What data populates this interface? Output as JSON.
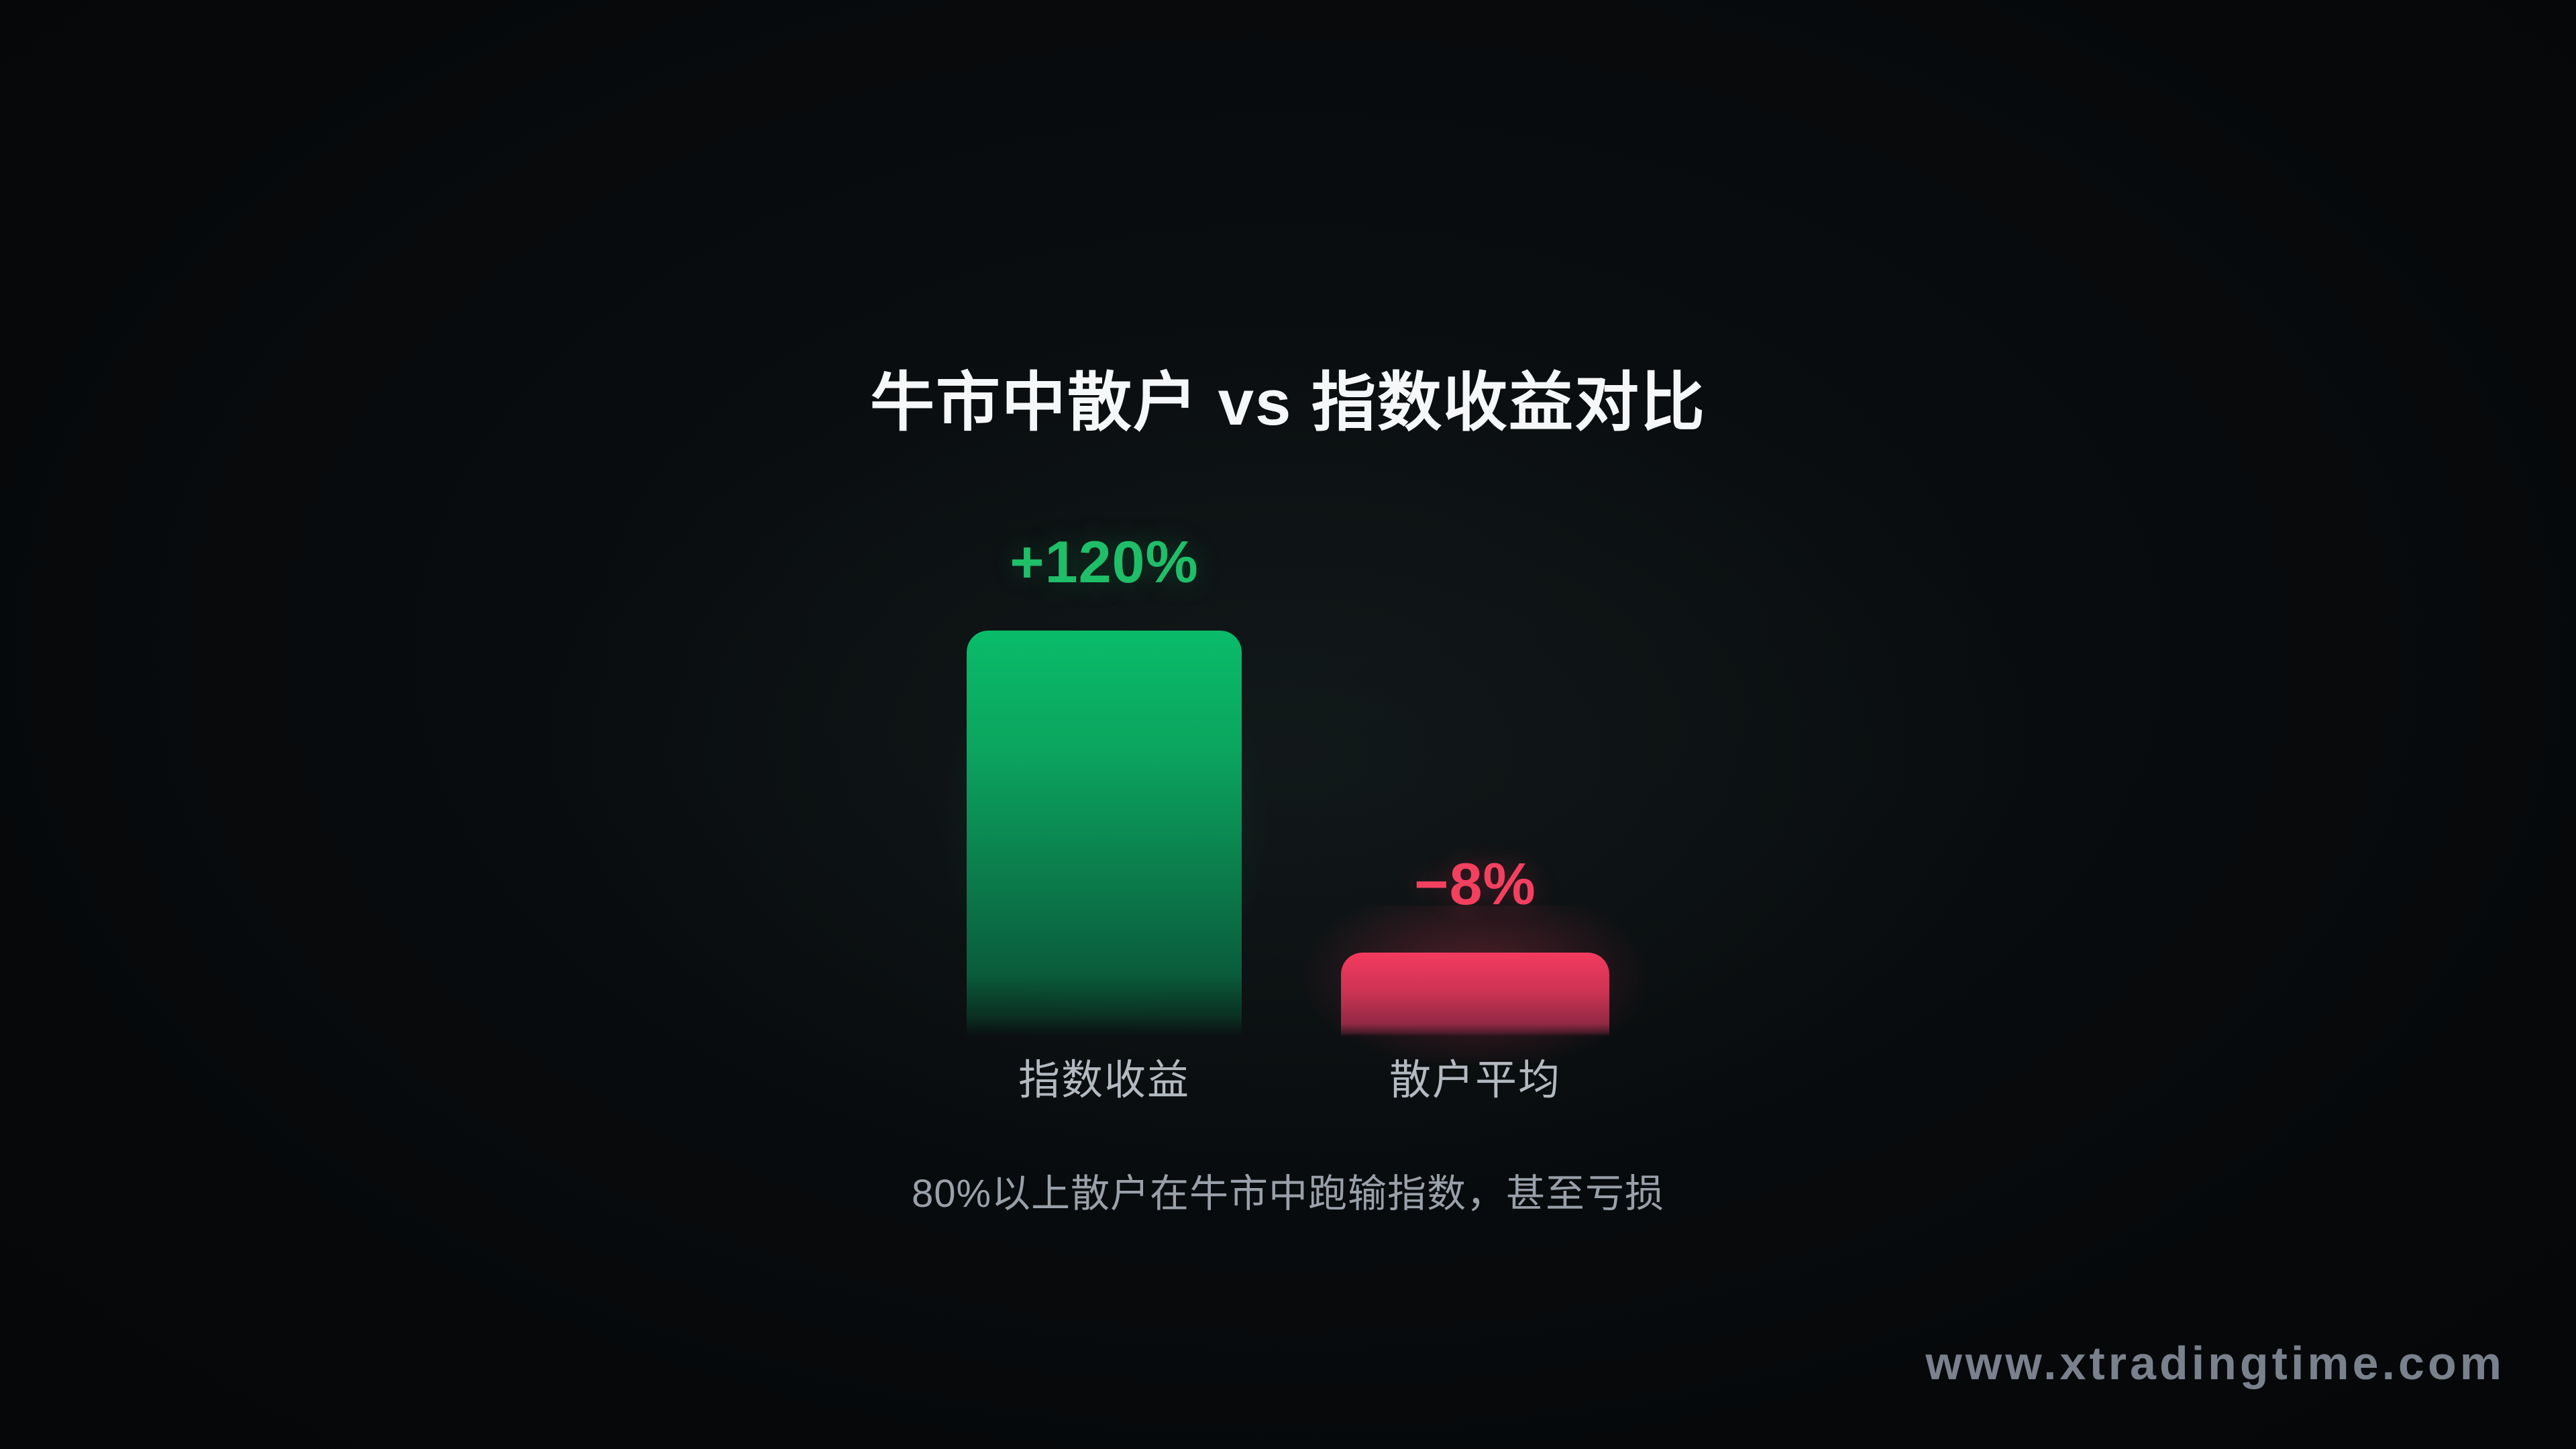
{
  "page": {
    "title": "牛市中散户 vs 指数收益对比",
    "caption": "80%以上散户在牛市中跑输指数，甚至亏损",
    "watermark": "www.xtradingtime.com"
  },
  "chart_data": {
    "type": "bar",
    "title": "牛市中散户 vs 指数收益对比",
    "categories": [
      "指数收益",
      "散户平均"
    ],
    "values": [
      120,
      -8
    ],
    "value_labels": [
      "+120%",
      "−8%"
    ],
    "unit": "%",
    "annotation": "80%以上散户在牛市中跑输指数，甚至亏损",
    "legend_position": "none",
    "grid": false,
    "axes_visible": false,
    "bar_colors": [
      "#09bc69",
      "#f43b5e"
    ],
    "value_label_colors": [
      "#1fbe68",
      "#f4405f"
    ]
  },
  "colors": {
    "background": "#07090b",
    "title_text": "#f5f7f8",
    "positive_green": "#09bc69",
    "negative_red": "#f43b5e",
    "category_text": "#b3b9c0",
    "caption_text": "#99a0a9",
    "watermark_text": "#8a92a0"
  }
}
